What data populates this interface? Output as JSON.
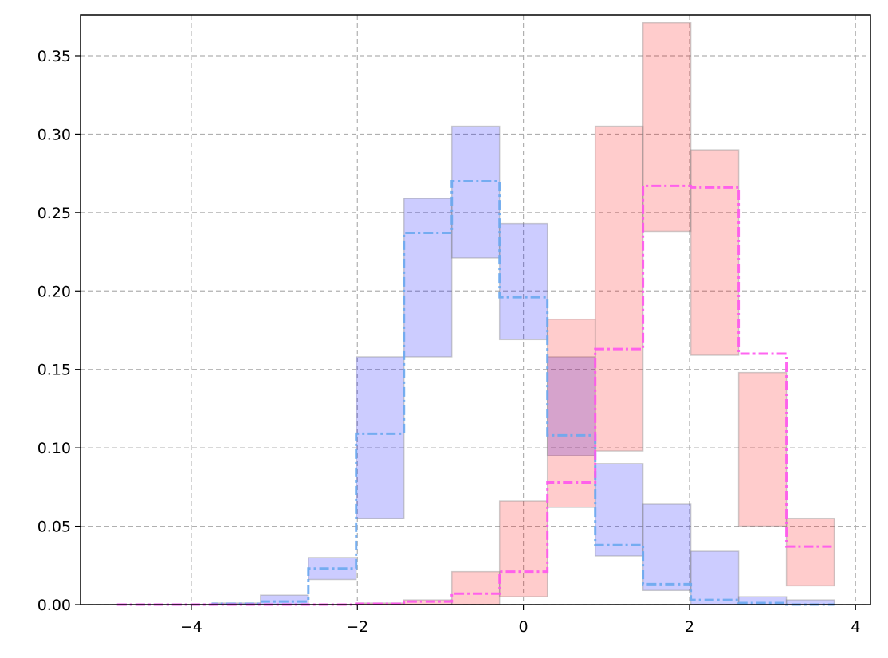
{
  "chart_data": {
    "type": "histogram",
    "bins": [
      -4.894,
      -4.318,
      -3.742,
      -3.166,
      -2.59,
      -2.015,
      -1.439,
      -0.863,
      -0.287,
      0.289,
      0.865,
      1.44,
      2.016,
      2.592,
      3.168,
      3.744
    ],
    "series": [
      {
        "color": "#6aa8f0",
        "band_color": "#0000ff",
        "values": [
          0,
          0,
          0.0005,
          0.002,
          0.023,
          0.109,
          0.237,
          0.27,
          0.196,
          0.108,
          0.038,
          0.013,
          0.003,
          0.001,
          0
        ],
        "lower": [
          0,
          0,
          0,
          0,
          0.016,
          0.055,
          0.158,
          0.221,
          0.169,
          0.095,
          0.031,
          0.009,
          0,
          0,
          0
        ],
        "upper": [
          0,
          0,
          0.001,
          0.006,
          0.03,
          0.158,
          0.259,
          0.305,
          0.243,
          0.158,
          0.09,
          0.064,
          0.034,
          0.005,
          0.003
        ]
      },
      {
        "color": "#ff55ee",
        "band_color": "#ff0000",
        "values": [
          0,
          0,
          0,
          0,
          0,
          0.0005,
          0.002,
          0.007,
          0.021,
          0.078,
          0.163,
          0.267,
          0.266,
          0.16,
          0.037
        ],
        "lower": [
          0,
          0,
          0,
          0,
          0,
          0,
          0,
          0,
          0.005,
          0.062,
          0.098,
          0.238,
          0.159,
          0.05,
          0.012
        ],
        "upper": [
          0,
          0,
          0,
          0,
          0,
          0.001,
          0.003,
          0.021,
          0.066,
          0.182,
          0.305,
          0.371,
          0.29,
          0.148,
          0.055
        ]
      }
    ],
    "xlim": [
      -5.334,
      4.18
    ],
    "ylim": [
      0,
      0.3759
    ],
    "xticks": [
      {
        "value": -4,
        "label": "−4"
      },
      {
        "value": -2,
        "label": "−2"
      },
      0,
      2,
      {
        "value": 4,
        "label": "4"
      }
    ],
    "yticks": [
      {
        "value": 0,
        "label": "0.00"
      },
      {
        "value": 0.05,
        "label": "0.05"
      },
      {
        "value": 0.1,
        "label": "0.10"
      },
      {
        "value": 0.15,
        "label": "0.15"
      },
      {
        "value": 0.2,
        "label": "0.20"
      },
      {
        "value": 0.25,
        "label": "0.25"
      },
      {
        "value": 0.3,
        "label": "0.30"
      },
      {
        "value": 0.35,
        "label": "0.35"
      }
    ],
    "grid": true
  }
}
